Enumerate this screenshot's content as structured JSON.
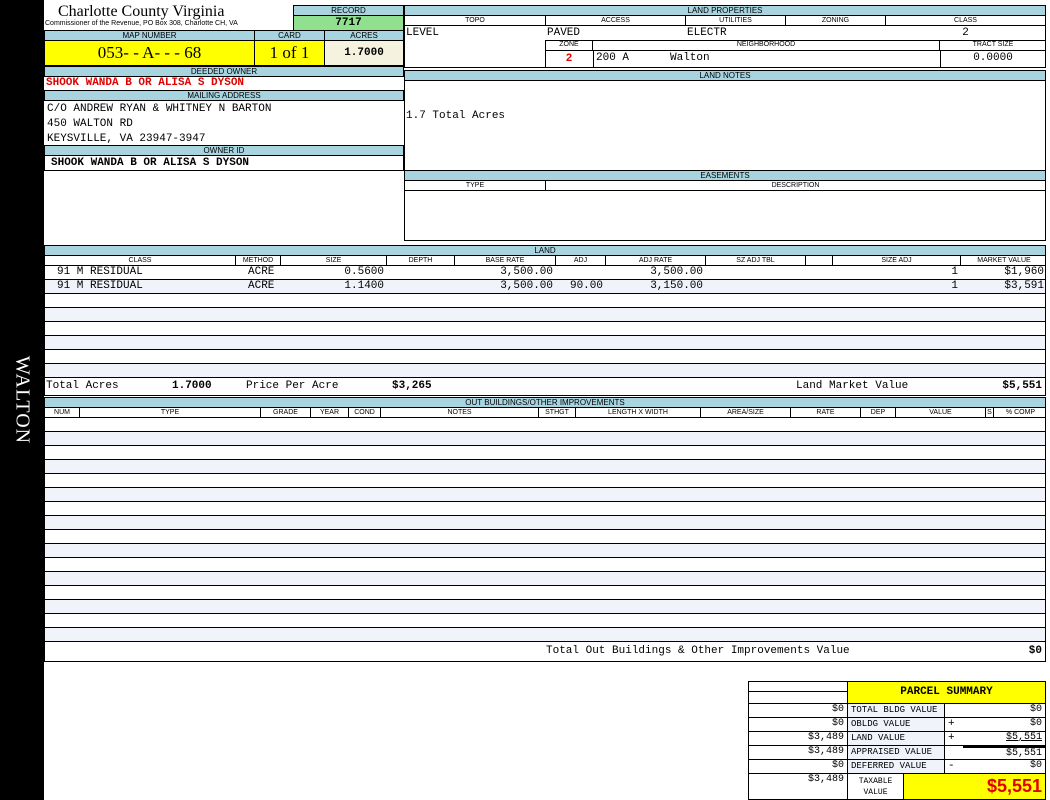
{
  "sidebar": {
    "label": "WALTON"
  },
  "header": {
    "title": "Charlotte County Virginia",
    "subtitle": "Commissioner of the Revenue, PO Box 308, Charlotte CH, VA",
    "record_label": "RECORD",
    "record": "7717"
  },
  "map": {
    "map_label": "MAP NUMBER",
    "map_number": "053- - A- - - 68",
    "card_label": "CARD",
    "card": "1 of 1",
    "acres_label": "ACRES",
    "acres": "1.7000"
  },
  "owner": {
    "deeded_label": "DEEDED OWNER",
    "deeded": "SHOOK WANDA B OR ALISA S DYSON",
    "mailing_label": "MAILING ADDRESS",
    "mailing": [
      "C/O ANDREW RYAN & WHITNEY N BARTON",
      "450 WALTON RD",
      "KEYSVILLE, VA 23947-3947"
    ],
    "id_label": "OWNER ID",
    "id": "SHOOK WANDA B OR ALISA S DYSON"
  },
  "land_properties": {
    "title": "LAND PROPERTIES",
    "topo_label": "TOPO",
    "access_label": "ACCESS",
    "utilities_label": "UTILITIES",
    "zoning_label": "ZONING",
    "class_label": "CLASS",
    "topo": "LEVEL",
    "access": "PAVED",
    "utilities": "ELECTR",
    "zoning": "",
    "class": "2",
    "zone_label": "ZONE",
    "neighborhood_label": "NEIGHBORHOOD",
    "tract_label": "TRACT SIZE",
    "zone": "2",
    "neighborhood_code": "200 A",
    "neighborhood": "Walton",
    "tract": "0.0000"
  },
  "land_notes": {
    "title": "LAND NOTES",
    "text": "1.7 Total Acres"
  },
  "easements": {
    "title": "EASEMENTS",
    "type_label": "TYPE",
    "description_label": "DESCRIPTION"
  },
  "land": {
    "title": "LAND",
    "columns": [
      "CLASS",
      "METHOD",
      "SIZE",
      "DEPTH",
      "BASE RATE",
      "ADJ",
      "ADJ RATE",
      "SZ ADJ TBL",
      "",
      "Size Adj",
      "MARKET VALUE"
    ],
    "rows": [
      [
        "91 M RESIDUAL",
        "ACRE",
        "0.5600",
        "",
        "3,500.00",
        "",
        "3,500.00",
        "",
        "",
        "1",
        "$1,960"
      ],
      [
        "91 M RESIDUAL",
        "ACRE",
        "1.1400",
        "",
        "3,500.00",
        "90.00",
        "3,150.00",
        "",
        "",
        "1",
        "$3,591"
      ]
    ],
    "total_acres_label": "Total Acres",
    "total_acres": "1.7000",
    "ppa_label": "Price Per Acre",
    "ppa": "$3,265",
    "lmv_label": "Land Market Value",
    "lmv": "$5,551"
  },
  "outbuildings": {
    "title": "OUT BUILDINGS/OTHER IMPROVEMENTS",
    "columns": [
      "NUM",
      "TYPE",
      "GRADE",
      "YEAR",
      "COND",
      "NOTES",
      "STHGT",
      "LENGTH X WIDTH",
      "AREA/SIZE",
      "RATE",
      "DEP",
      "VALUE",
      "S",
      "% COMP"
    ],
    "total_label": "Total Out Buildings & Other Improvements Value",
    "total": "$0"
  },
  "summary": {
    "title": "PARCEL SUMMARY",
    "rows": [
      {
        "left": "$0",
        "label": "TOTAL BLDG VALUE",
        "op": "",
        "right": "$0"
      },
      {
        "left": "$0",
        "label": "OBLDG VALUE",
        "op": "+",
        "right": "$0"
      },
      {
        "left": "$3,489",
        "label": "LAND VALUE",
        "op": "+",
        "right": "$5,551"
      },
      {
        "left": "$3,489",
        "label": "APPRAISED VALUE",
        "op": "",
        "right": "$5,551"
      },
      {
        "left": "$0",
        "label": "DEFERRED VALUE",
        "op": "-",
        "right": "$0"
      }
    ],
    "taxable_left": "$3,489",
    "taxable_label": "TAXABLE VALUE",
    "taxable": "$5,551"
  },
  "colors": {
    "header_blue": "#a8d4e0",
    "yellow": "#ffff00",
    "record_green": "#90e090",
    "owner_red": "#e00000"
  }
}
